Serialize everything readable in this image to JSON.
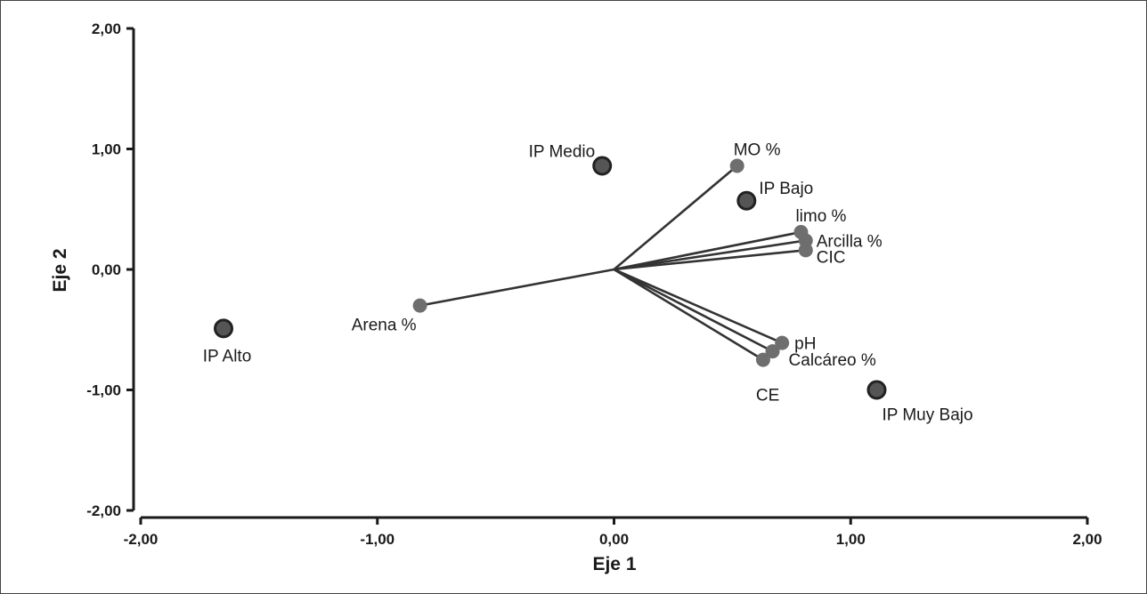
{
  "chart_data": {
    "type": "scatter",
    "xlabel": "Eje 1",
    "ylabel": "Eje 2",
    "xlim": [
      -2,
      2
    ],
    "ylim": [
      -2,
      2
    ],
    "xticks": [
      "-2,00",
      "-1,00",
      "0,00",
      "1,00",
      "2,00"
    ],
    "yticks": [
      "2,00",
      "1,00",
      "0,00",
      "-1,00",
      "-2,00"
    ],
    "variables": [
      {
        "label": "MO %",
        "x": 0.52,
        "y": 0.86
      },
      {
        "label": "limo %",
        "x": 0.79,
        "y": 0.31
      },
      {
        "label": "Arcilla %",
        "x": 0.81,
        "y": 0.24
      },
      {
        "label": "CIC",
        "x": 0.81,
        "y": 0.16
      },
      {
        "label": "Arena %",
        "x": -0.82,
        "y": -0.3
      },
      {
        "label": "pH",
        "x": 0.71,
        "y": -0.61
      },
      {
        "label": "Calcáreo %",
        "x": 0.67,
        "y": -0.68
      },
      {
        "label": "CE",
        "x": 0.63,
        "y": -0.75
      }
    ],
    "categories": [
      {
        "label": "IP Medio",
        "x": -0.05,
        "y": 0.86
      },
      {
        "label": "IP Bajo",
        "x": 0.56,
        "y": 0.57
      },
      {
        "label": "IP Alto",
        "x": -1.65,
        "y": -0.49
      },
      {
        "label": "IP Muy Bajo",
        "x": 1.11,
        "y": -1.0
      }
    ],
    "colors": {
      "axis": "#1a1a1a",
      "vector": "#333333",
      "variable_point": "#6e6e6e",
      "category_point": "#555555",
      "category_stroke": "#222222"
    }
  }
}
